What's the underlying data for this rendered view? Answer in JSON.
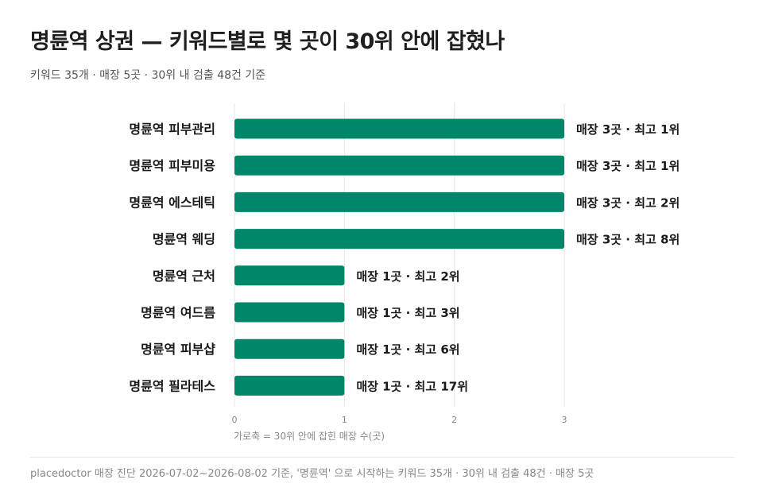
{
  "header": {
    "title": "명륜역 상권 — 키워드별로 몇 곳이 30위 안에 잡혔나",
    "subtitle": "키워드 35개 · 매장 5곳 · 30위 내 검출 48건 기준"
  },
  "footer": {
    "note": "placedoctor 매장 진단 2026-07-02~2026-08-02 기준, '명륜역' 으로 시작하는 키워드 35개 · 30위 내 검출 48건 · 매장 5곳"
  },
  "colors": {
    "bar": "#00876a",
    "grid": "#e6e6e6",
    "axis_text": "#888888"
  },
  "chart_data": {
    "type": "bar",
    "orientation": "horizontal",
    "categories": [
      "명륜역 피부관리",
      "명륜역 피부미용",
      "명륜역 에스테틱",
      "명륜역 웨딩",
      "명륜역 근처",
      "명륜역 여드름",
      "명륜역 피부샵",
      "명륜역 필라테스"
    ],
    "values": [
      3,
      3,
      3,
      3,
      1,
      1,
      1,
      1
    ],
    "data_labels": [
      "매장 3곳 · 최고 1위",
      "매장 3곳 · 최고 1위",
      "매장 3곳 · 최고 2위",
      "매장 3곳 · 최고 8위",
      "매장 1곳 · 최고 2위",
      "매장 1곳 · 최고 3위",
      "매장 1곳 · 최고 6위",
      "매장 1곳 · 최고 17위"
    ],
    "xticks": [
      "0",
      "1",
      "2",
      "3"
    ],
    "xlim": [
      0,
      3
    ],
    "xlabel": "가로축 = 30위 안에 잡힌 매장 수(곳)",
    "ylabel": "",
    "grid": true,
    "legend": "none"
  }
}
